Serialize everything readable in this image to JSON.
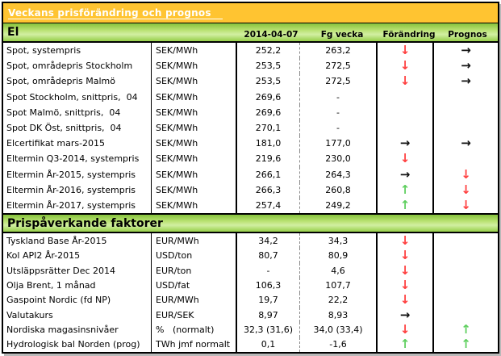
{
  "banner": {
    "title": "Veckans prisförändring och prognos"
  },
  "columns": {
    "date": "2014-04-07",
    "prev": "Fg vecka",
    "change": "Förändring",
    "forecast": "Prognos"
  },
  "icons": {
    "down": "↓",
    "up": "↑",
    "right": "→"
  },
  "colors": {
    "banner_bg": "#ffc431",
    "band_green": "#96cf49",
    "arrow_down_red": "#ff4040",
    "arrow_up_green": "#5ecf5e",
    "arrow_right_black": "#111111"
  },
  "sections": [
    {
      "header": "El",
      "rows": [
        {
          "label": "Spot, systempris",
          "unit": "SEK/MWh",
          "value": "252,2",
          "prev": "263,2",
          "change": "down",
          "forecast": "right"
        },
        {
          "label": "Spot, områdepris Stockholm",
          "unit": "SEK/MWh",
          "value": "253,5",
          "prev": "272,5",
          "change": "down",
          "forecast": "right"
        },
        {
          "label": "Spot, områdepris Malmö",
          "unit": "SEK/MWh",
          "value": "253,5",
          "prev": "272,5",
          "change": "down",
          "forecast": "right"
        },
        {
          "label": "Spot Stockholm, snittpris,  04",
          "unit": "SEK/MWh",
          "value": "269,6",
          "prev": "-",
          "change": "",
          "forecast": ""
        },
        {
          "label": "Spot Malmö, snittpris,  04",
          "unit": "SEK/MWh",
          "value": "269,6",
          "prev": "-",
          "change": "",
          "forecast": ""
        },
        {
          "label": "Spot DK Öst, snittpris,  04",
          "unit": "SEK/MWh",
          "value": "270,1",
          "prev": "-",
          "change": "",
          "forecast": ""
        },
        {
          "label": "Elcertifikat mars-2015",
          "unit": "SEK/MWh",
          "value": "181,0",
          "prev": "177,0",
          "change": "right",
          "forecast": "right"
        },
        {
          "label": "Eltermin Q3-2014, systempris",
          "unit": "SEK/MWh",
          "value": "219,6",
          "prev": "230,0",
          "change": "down",
          "forecast": ""
        },
        {
          "label": "Eltermin År-2015, systempris",
          "unit": "SEK/MWh",
          "value": "266,1",
          "prev": "264,3",
          "change": "right",
          "forecast": "down"
        },
        {
          "label": "Eltermin År-2016, systempris",
          "unit": "SEK/MWh",
          "value": "266,3",
          "prev": "260,8",
          "change": "up",
          "forecast": "down"
        },
        {
          "label": "Eltermin År-2017, systempris",
          "unit": "SEK/MWh",
          "value": "257,4",
          "prev": "249,2",
          "change": "up",
          "forecast": "down"
        }
      ]
    },
    {
      "header": "Prispåverkande faktorer",
      "rows": [
        {
          "label": "Tyskland Base År-2015",
          "unit": "EUR/MWh",
          "value": "34,2",
          "prev": "34,3",
          "change": "down",
          "forecast": ""
        },
        {
          "label": "Kol API2 År-2015",
          "unit": "USD/ton",
          "value": "80,7",
          "prev": "80,9",
          "change": "down",
          "forecast": ""
        },
        {
          "label": "Utsläppsrätter Dec 2014",
          "unit": "EUR/ton",
          "value": "-",
          "prev": "4,6",
          "change": "down",
          "forecast": ""
        },
        {
          "label": "Olja Brent, 1 månad",
          "unit": "USD/fat",
          "value": "106,3",
          "prev": "107,7",
          "change": "down",
          "forecast": ""
        },
        {
          "label": "Gaspoint Nordic (fd NP)",
          "unit": "EUR/MWh",
          "value": "19,7",
          "prev": "22,2",
          "change": "down",
          "forecast": ""
        },
        {
          "label": "Valutakurs",
          "unit": "EUR/SEK",
          "value": "8,97",
          "prev": "8,93",
          "change": "right",
          "forecast": ""
        },
        {
          "label": "Nordiska magasinsnivåer",
          "unit": "%   (normalt)",
          "value": "32,3 (31,6)",
          "prev": "34,0 (33,4)",
          "change": "down",
          "forecast": "up"
        },
        {
          "label": "Hydrologisk bal Norden (prog)",
          "unit": "TWh jmf normalt",
          "value": "0,1",
          "prev": "-1,6",
          "change": "up",
          "forecast": "up"
        }
      ]
    }
  ]
}
